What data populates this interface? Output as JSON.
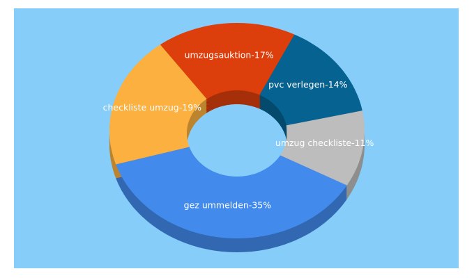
{
  "chart_data": {
    "type": "donut3d",
    "values": [
      17,
      14,
      11,
      35,
      19
    ],
    "value_labels": [
      "umzugsauktion-17%",
      "pvc verlegen-14%",
      "umzug checkliste-11%",
      "gez ummelden-35%",
      "checkliste umzug-19%"
    ],
    "colors": [
      "#dc3e0c",
      "#056291",
      "#bdbdbd",
      "#428bed",
      "#fbb03f"
    ]
  }
}
